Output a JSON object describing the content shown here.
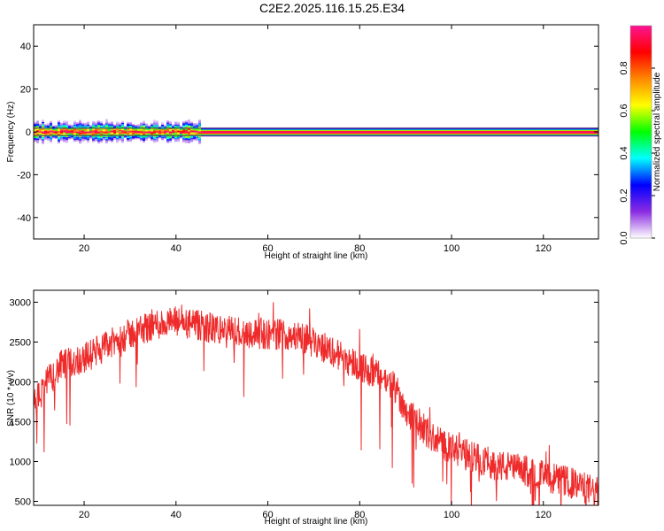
{
  "title": "C2E2.2025.116.15.25.E34",
  "chart_data": [
    {
      "type": "heatmap",
      "xlabel": "Height of straight line (km)",
      "ylabel": "Frequency (Hz)",
      "xlim": [
        9,
        132
      ],
      "ylim": [
        -50,
        50
      ],
      "x_ticks": [
        20,
        40,
        60,
        80,
        100,
        120
      ],
      "y_ticks": [
        40,
        20,
        0,
        -20,
        -40
      ],
      "colorbar": {
        "label": "Normalized spectral amplitude",
        "range": [
          0,
          1
        ],
        "ticks": [
          "0.0",
          "0.2",
          "0.4",
          "0.6",
          "0.8"
        ],
        "colors": [
          "#ffffff",
          "#8a2be2",
          "#0000ff",
          "#00ffff",
          "#00ff00",
          "#ffff00",
          "#ff8800",
          "#ff0000",
          "#ff1493"
        ]
      },
      "signal": {
        "band_center_hz": 0,
        "band_halfwidth_hz": 1,
        "spread_region_km": [
          9,
          45
        ],
        "spread_halfwidth_hz": 6
      }
    },
    {
      "type": "line",
      "xlabel": "Height of straight line (km)",
      "ylabel": "SNR (10 * v/v)",
      "xlim": [
        9,
        132
      ],
      "ylim": [
        450,
        3150
      ],
      "x_ticks": [
        20,
        40,
        60,
        80,
        100,
        120
      ],
      "y_ticks": [
        500,
        1000,
        1500,
        2000,
        2500,
        3000
      ],
      "series": [
        {
          "color": "#ee2a2a",
          "trend": {
            "x": [
              9,
              12,
              15,
              20,
              25,
              30,
              35,
              40,
              45,
              50,
              55,
              60,
              65,
              70,
              75,
              80,
              85,
              88,
              90,
              95,
              100,
              105,
              110,
              115,
              120,
              125,
              130,
              132
            ],
            "y": [
              1700,
              2000,
              2200,
              2300,
              2450,
              2600,
              2720,
              2750,
              2700,
              2650,
              2620,
              2600,
              2600,
              2500,
              2350,
              2200,
              2050,
              1900,
              1650,
              1350,
              1150,
              1050,
              950,
              900,
              820,
              750,
              650,
              600
            ]
          },
          "noise_amplitude": 200
        }
      ]
    }
  ]
}
